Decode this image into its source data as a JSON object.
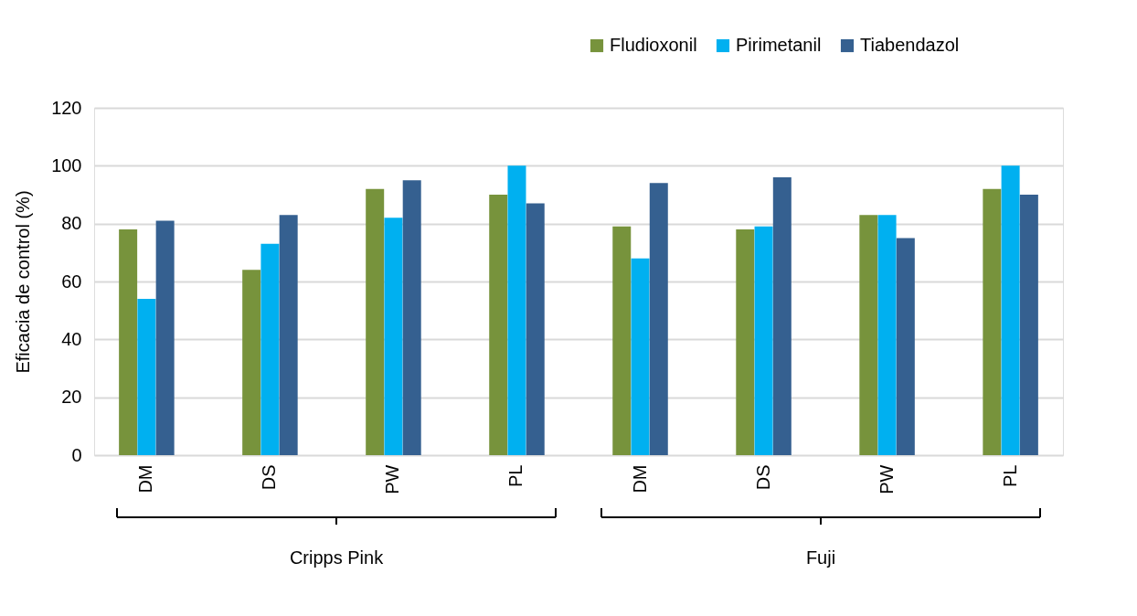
{
  "chart_data": {
    "type": "bar",
    "ylabel": "Eficacia de control (%)",
    "categories": [
      "DM",
      "DS",
      "PW",
      "PL",
      "DM",
      "DS",
      "PW",
      "PL"
    ],
    "series": [
      {
        "name": "Fludioxonil",
        "color": "#77933c",
        "values": [
          78,
          64,
          92,
          90,
          79,
          78,
          83,
          92
        ]
      },
      {
        "name": "Pirimetanil",
        "color": "#00b0f0",
        "values": [
          54,
          73,
          82,
          100,
          68,
          79,
          83,
          100
        ]
      },
      {
        "name": "Tiabendazol",
        "color": "#356090",
        "values": [
          81,
          83,
          95,
          87,
          94,
          96,
          75,
          90
        ]
      }
    ],
    "ylim": [
      0,
      120
    ],
    "yticks": [
      0,
      20,
      40,
      60,
      80,
      100,
      120
    ],
    "grid": "y",
    "legend": "top right",
    "annotations": [
      "Cripps Pink",
      "Fuji"
    ]
  }
}
